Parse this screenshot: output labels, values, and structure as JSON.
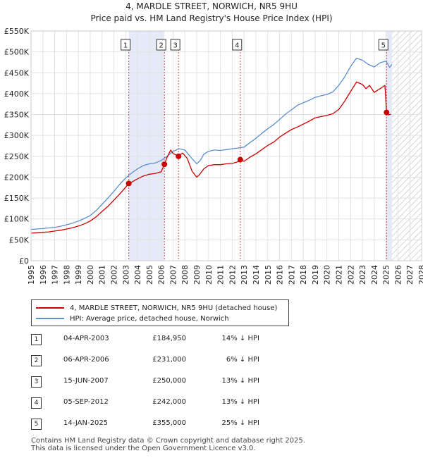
{
  "header": {
    "title": "4, MARDLE STREET, NORWICH, NR5 9HU",
    "subtitle": "Price paid vs. HM Land Registry's House Price Index (HPI)"
  },
  "chart_data": {
    "type": "line",
    "title": "4, MARDLE STREET, NORWICH, NR5 9HU",
    "subtitle": "Price paid vs. HM Land Registry's House Price Index (HPI)",
    "xlim": [
      1995,
      2028
    ],
    "ylim": [
      0,
      550000
    ],
    "x_ticks": [
      "1995",
      "1996",
      "1997",
      "1998",
      "1999",
      "2000",
      "2001",
      "2002",
      "2003",
      "2004",
      "2005",
      "2006",
      "2007",
      "2008",
      "2009",
      "2010",
      "2011",
      "2012",
      "2013",
      "2014",
      "2015",
      "2016",
      "2017",
      "2018",
      "2019",
      "2020",
      "2021",
      "2022",
      "2023",
      "2024",
      "2025",
      "2026",
      "2027",
      "2028"
    ],
    "y_ticks": [
      {
        "value": 0,
        "label": "£0"
      },
      {
        "value": 50000,
        "label": "£50K"
      },
      {
        "value": 100000,
        "label": "£100K"
      },
      {
        "value": 150000,
        "label": "£150K"
      },
      {
        "value": 200000,
        "label": "£200K"
      },
      {
        "value": 250000,
        "label": "£250K"
      },
      {
        "value": 300000,
        "label": "£300K"
      },
      {
        "value": 350000,
        "label": "£350K"
      },
      {
        "value": 400000,
        "label": "£400K"
      },
      {
        "value": 450000,
        "label": "£450K"
      },
      {
        "value": 500000,
        "label": "£500K"
      },
      {
        "value": 550000,
        "label": "£550K"
      }
    ],
    "grid": true,
    "shaded_periods": [
      {
        "from": 2003.26,
        "to": 2006.27
      },
      {
        "from": 2025.04,
        "to": 2025.5
      }
    ],
    "future_from": 2025.5,
    "series": [
      {
        "name": "4, MARDLE STREET, NORWICH, NR5 9HU (detached house)",
        "color": "#cc0000",
        "x": [
          1995.0,
          1995.5,
          1996.0,
          1996.5,
          1997.0,
          1997.5,
          1998.0,
          1998.5,
          1999.0,
          1999.5,
          2000.0,
          2000.5,
          2001.0,
          2001.5,
          2002.0,
          2002.5,
          2003.0,
          2003.26,
          2003.5,
          2004.0,
          2004.5,
          2005.0,
          2005.5,
          2006.0,
          2006.27,
          2006.5,
          2006.8,
          2007.0,
          2007.46,
          2007.8,
          2008.2,
          2008.6,
          2009.0,
          2009.2,
          2009.6,
          2010.0,
          2010.5,
          2011.0,
          2011.5,
          2012.0,
          2012.5,
          2012.68,
          2013.0,
          2013.5,
          2014.0,
          2014.5,
          2015.0,
          2015.5,
          2016.0,
          2016.5,
          2017.0,
          2017.5,
          2018.0,
          2018.5,
          2019.0,
          2019.5,
          2020.0,
          2020.5,
          2021.0,
          2021.5,
          2022.0,
          2022.5,
          2023.0,
          2023.3,
          2023.6,
          2024.0,
          2024.5,
          2024.9,
          2025.04,
          2025.2,
          2025.4
        ],
        "y": [
          66000,
          67000,
          68000,
          69000,
          71000,
          73000,
          76000,
          79000,
          83000,
          88000,
          95000,
          105000,
          118000,
          130000,
          145000,
          160000,
          176000,
          184950,
          188000,
          196000,
          203000,
          207000,
          209000,
          213000,
          231000,
          248000,
          265000,
          257000,
          250000,
          258000,
          245000,
          215000,
          200000,
          205000,
          220000,
          228000,
          230000,
          230000,
          232000,
          233000,
          237000,
          242000,
          238000,
          248000,
          256000,
          266000,
          276000,
          284000,
          296000,
          305000,
          314000,
          320000,
          327000,
          334000,
          342000,
          345000,
          348000,
          352000,
          362000,
          382000,
          405000,
          428000,
          422000,
          412000,
          420000,
          403000,
          412000,
          420000,
          355000,
          349000,
          351000
        ]
      },
      {
        "name": "HPI: Average price, detached house, Norwich",
        "color": "#5b8fcc",
        "x": [
          1995.0,
          1995.5,
          1996.0,
          1996.5,
          1997.0,
          1997.5,
          1998.0,
          1998.5,
          1999.0,
          1999.5,
          2000.0,
          2000.5,
          2001.0,
          2001.5,
          2002.0,
          2002.5,
          2003.0,
          2003.5,
          2004.0,
          2004.5,
          2005.0,
          2005.5,
          2006.0,
          2006.5,
          2007.0,
          2007.5,
          2008.0,
          2008.5,
          2009.0,
          2009.3,
          2009.6,
          2010.0,
          2010.5,
          2011.0,
          2011.5,
          2012.0,
          2012.5,
          2013.0,
          2013.5,
          2014.0,
          2014.5,
          2015.0,
          2015.5,
          2016.0,
          2016.5,
          2017.0,
          2017.5,
          2018.0,
          2018.5,
          2019.0,
          2019.5,
          2020.0,
          2020.5,
          2021.0,
          2021.5,
          2022.0,
          2022.5,
          2023.0,
          2023.5,
          2024.0,
          2024.5,
          2025.0,
          2025.3,
          2025.5
        ],
        "y": [
          75000,
          76000,
          77000,
          78500,
          80000,
          82500,
          86000,
          90000,
          95000,
          101000,
          108000,
          120000,
          135000,
          150000,
          166000,
          183000,
          198000,
          210000,
          220000,
          228000,
          232000,
          234000,
          240000,
          250000,
          262000,
          268000,
          265000,
          248000,
          232000,
          240000,
          255000,
          262000,
          265000,
          264000,
          266000,
          268000,
          270000,
          272000,
          283000,
          293000,
          305000,
          316000,
          326000,
          338000,
          351000,
          361000,
          372000,
          378000,
          384000,
          391000,
          395000,
          398000,
          404000,
          420000,
          440000,
          465000,
          485000,
          480000,
          470000,
          464000,
          474000,
          478000,
          463000,
          470000
        ]
      }
    ],
    "sales": [
      {
        "label": "1",
        "date": "04-APR-2003",
        "x": 2003.26,
        "price": 184950,
        "price_text": "£184,950",
        "hpi_text": "14% ↓ HPI"
      },
      {
        "label": "2",
        "date": "06-APR-2006",
        "x": 2006.27,
        "price": 231000,
        "price_text": "£231,000",
        "hpi_text": "6% ↓ HPI"
      },
      {
        "label": "3",
        "date": "15-JUN-2007",
        "x": 2007.46,
        "price": 250000,
        "price_text": "£250,000",
        "hpi_text": "13% ↓ HPI"
      },
      {
        "label": "4",
        "date": "05-SEP-2012",
        "x": 2012.68,
        "price": 242000,
        "price_text": "£242,000",
        "hpi_text": "13% ↓ HPI"
      },
      {
        "label": "5",
        "date": "14-JAN-2025",
        "x": 2025.04,
        "price": 355000,
        "price_text": "£355,000",
        "hpi_text": "25% ↓ HPI"
      }
    ]
  },
  "legend": {
    "property_label": "4, MARDLE STREET, NORWICH, NR5 9HU (detached house)",
    "hpi_label": "HPI: Average price, detached house, Norwich",
    "property_color": "#cc0000",
    "hpi_color": "#5b8fcc"
  },
  "footer": {
    "line1": "Contains HM Land Registry data © Crown copyright and database right 2025.",
    "line2": "This data is licensed under the Open Government Licence v3.0."
  }
}
